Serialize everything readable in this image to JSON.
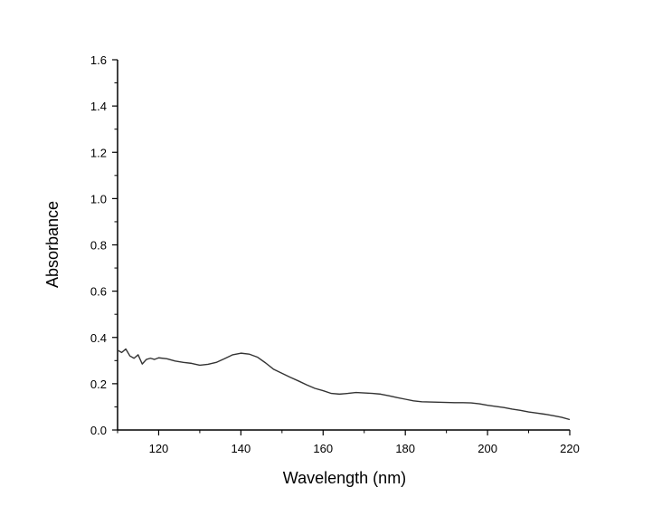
{
  "chart_data": {
    "type": "line",
    "title": "",
    "xlabel": "Wavelength (nm)",
    "ylabel": "Absorbance",
    "xlim": [
      110,
      220
    ],
    "ylim": [
      0.0,
      1.6
    ],
    "x_ticks": [
      120,
      140,
      160,
      180,
      200,
      220
    ],
    "x_tick_labels": [
      "120",
      "140",
      "160",
      "180",
      "200",
      "220"
    ],
    "y_ticks": [
      0.0,
      0.2,
      0.4,
      0.6,
      0.8,
      1.0,
      1.2,
      1.4,
      1.6
    ],
    "y_tick_labels": [
      "0.0",
      "0.2",
      "0.4",
      "0.6",
      "0.8",
      "1.0",
      "1.2",
      "1.4",
      "1.6"
    ],
    "grid": false,
    "legend": "none",
    "line_color": "#333333",
    "series": [
      {
        "x": [
          110,
          111,
          112,
          113,
          114,
          115,
          116,
          117,
          118,
          119,
          120,
          122,
          124,
          126,
          128,
          130,
          132,
          134,
          136,
          138,
          140,
          142,
          144,
          146,
          148,
          150,
          152,
          154,
          156,
          158,
          160,
          162,
          164,
          166,
          168,
          170,
          172,
          174,
          176,
          178,
          180,
          182,
          184,
          186,
          188,
          190,
          192,
          194,
          196,
          198,
          200,
          202,
          204,
          206,
          208,
          210,
          212,
          214,
          216,
          218,
          220
        ],
        "y": [
          0.345,
          0.335,
          0.35,
          0.32,
          0.31,
          0.325,
          0.285,
          0.305,
          0.31,
          0.305,
          0.312,
          0.308,
          0.298,
          0.292,
          0.288,
          0.28,
          0.284,
          0.292,
          0.308,
          0.325,
          0.332,
          0.328,
          0.315,
          0.29,
          0.262,
          0.245,
          0.228,
          0.212,
          0.195,
          0.18,
          0.17,
          0.158,
          0.155,
          0.158,
          0.162,
          0.16,
          0.158,
          0.155,
          0.148,
          0.14,
          0.133,
          0.126,
          0.122,
          0.121,
          0.12,
          0.119,
          0.118,
          0.118,
          0.117,
          0.113,
          0.107,
          0.102,
          0.097,
          0.09,
          0.085,
          0.078,
          0.073,
          0.068,
          0.062,
          0.055,
          0.045
        ]
      }
    ]
  }
}
